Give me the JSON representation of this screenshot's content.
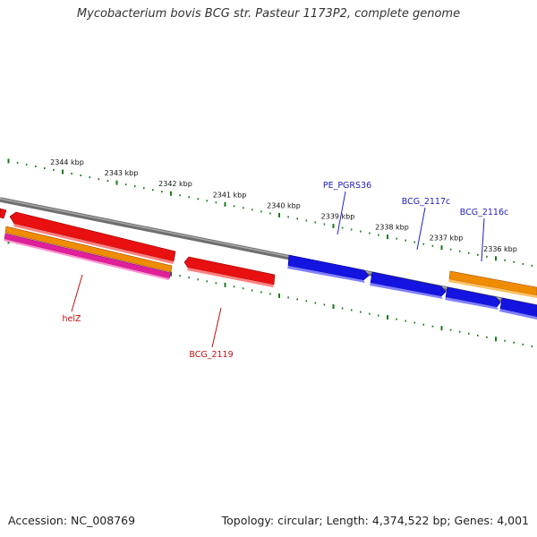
{
  "title": "Mycobacterium bovis BCG str. Pasteur 1173P2, complete genome",
  "footer": {
    "accession": "Accession: NC_008769",
    "summary": "Topology: circular; Length: 4,374,522 bp; Genes: 4,001"
  },
  "colors": {
    "backbone": "#808080",
    "forward_cds": "#2020e8",
    "reverse_cds": "#e81010",
    "orange_feature": "#f08c00",
    "pink_feature": "#e0209a",
    "tick": "#1a7a1a",
    "forward_label": "#2020c0",
    "reverse_label": "#c01010"
  },
  "ruler": {
    "unit": "kbp",
    "positions": [
      2336,
      2337,
      2338,
      2339,
      2340,
      2341,
      2342,
      2343,
      2344
    ],
    "labels": [
      "2336 kbp",
      "2337 kbp",
      "2338 kbp",
      "2339 kbp",
      "2340 kbp",
      "2341 kbp",
      "2342 kbp",
      "2343 kbp",
      "2344 kbp"
    ]
  },
  "genes": [
    {
      "name": "PE_PGRS36",
      "strand": "forward"
    },
    {
      "name": "BCG_2117c",
      "strand": "forward"
    },
    {
      "name": "BCG_2116c",
      "strand": "forward"
    },
    {
      "name": "helZ",
      "strand": "reverse"
    },
    {
      "name": "BCG_2119",
      "strand": "reverse"
    }
  ]
}
